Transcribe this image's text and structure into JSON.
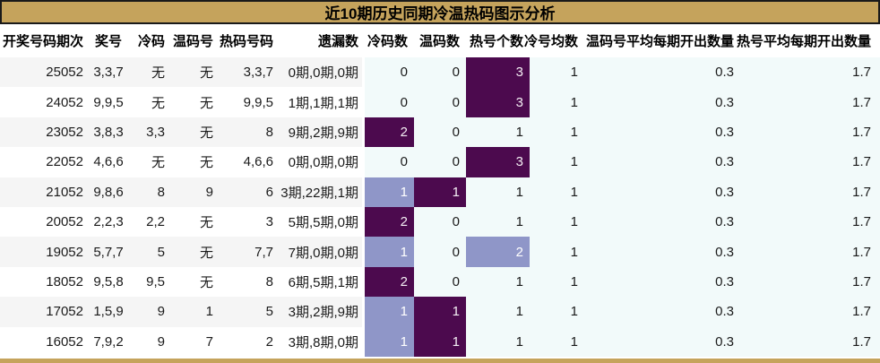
{
  "title": "近10期历史同期冷温热码图示分析",
  "colors": {
    "gold": "#C5A35C",
    "border": "#1A1A1A",
    "dark": "#4C0A4E",
    "light": "#8F96C8",
    "azure": "#F2FAFA",
    "rowAlt": "#F5F5F5"
  },
  "chart_data": {
    "type": "table",
    "title": "近10期历史同期冷温热码图示分析",
    "columns": [
      "开奖号码期次",
      "奖号",
      "冷码",
      "温码号",
      "热码号码",
      "遗漏数",
      "冷码数",
      "温码数",
      "热号个数",
      "冷号均数",
      "温码号平均每期开出数量",
      "热号平均每期开出数量"
    ],
    "highlight_legend": {
      "dark": "deep-purple cell (#4C0A4E)",
      "light": "periwinkle cell (#8F96C8)"
    },
    "rows": [
      {
        "period": "25052",
        "prize": "3,3,7",
        "cold": "无",
        "warm": "无",
        "hot": "3,3,7",
        "omission": "0期,0期,0期",
        "cold_count": "0",
        "warm_count": "0",
        "hot_count": "3",
        "cold_avg": "1",
        "warm_avg_per": "0.3",
        "hot_avg_per": "1.7",
        "highlights": {
          "hot_count": "dark"
        }
      },
      {
        "period": "24052",
        "prize": "9,9,5",
        "cold": "无",
        "warm": "无",
        "hot": "9,9,5",
        "omission": "1期,1期,1期",
        "cold_count": "0",
        "warm_count": "0",
        "hot_count": "3",
        "cold_avg": "1",
        "warm_avg_per": "0.3",
        "hot_avg_per": "1.7",
        "highlights": {
          "hot_count": "dark"
        }
      },
      {
        "period": "23052",
        "prize": "3,8,3",
        "cold": "3,3",
        "warm": "无",
        "hot": "8",
        "omission": "9期,2期,9期",
        "cold_count": "2",
        "warm_count": "0",
        "hot_count": "1",
        "cold_avg": "1",
        "warm_avg_per": "0.3",
        "hot_avg_per": "1.7",
        "highlights": {
          "cold_count": "dark"
        }
      },
      {
        "period": "22052",
        "prize": "4,6,6",
        "cold": "无",
        "warm": "无",
        "hot": "4,6,6",
        "omission": "0期,0期,0期",
        "cold_count": "0",
        "warm_count": "0",
        "hot_count": "3",
        "cold_avg": "1",
        "warm_avg_per": "0.3",
        "hot_avg_per": "1.7",
        "highlights": {
          "hot_count": "dark"
        }
      },
      {
        "period": "21052",
        "prize": "9,8,6",
        "cold": "8",
        "warm": "9",
        "hot": "6",
        "omission": "3期,22期,1期",
        "cold_count": "1",
        "warm_count": "1",
        "hot_count": "1",
        "cold_avg": "1",
        "warm_avg_per": "0.3",
        "hot_avg_per": "1.7",
        "highlights": {
          "cold_count": "light",
          "warm_count": "dark"
        }
      },
      {
        "period": "20052",
        "prize": "2,2,3",
        "cold": "2,2",
        "warm": "无",
        "hot": "3",
        "omission": "5期,5期,0期",
        "cold_count": "2",
        "warm_count": "0",
        "hot_count": "1",
        "cold_avg": "1",
        "warm_avg_per": "0.3",
        "hot_avg_per": "1.7",
        "highlights": {
          "cold_count": "dark"
        }
      },
      {
        "period": "19052",
        "prize": "5,7,7",
        "cold": "5",
        "warm": "无",
        "hot": "7,7",
        "omission": "7期,0期,0期",
        "cold_count": "1",
        "warm_count": "0",
        "hot_count": "2",
        "cold_avg": "1",
        "warm_avg_per": "0.3",
        "hot_avg_per": "1.7",
        "highlights": {
          "cold_count": "light",
          "hot_count": "light"
        }
      },
      {
        "period": "18052",
        "prize": "9,5,8",
        "cold": "9,5",
        "warm": "无",
        "hot": "8",
        "omission": "6期,5期,1期",
        "cold_count": "2",
        "warm_count": "0",
        "hot_count": "1",
        "cold_avg": "1",
        "warm_avg_per": "0.3",
        "hot_avg_per": "1.7",
        "highlights": {
          "cold_count": "dark"
        }
      },
      {
        "period": "17052",
        "prize": "1,5,9",
        "cold": "9",
        "warm": "1",
        "hot": "5",
        "omission": "3期,2期,9期",
        "cold_count": "1",
        "warm_count": "1",
        "hot_count": "1",
        "cold_avg": "1",
        "warm_avg_per": "0.3",
        "hot_avg_per": "1.7",
        "highlights": {
          "cold_count": "light",
          "warm_count": "dark"
        }
      },
      {
        "period": "16052",
        "prize": "7,9,2",
        "cold": "9",
        "warm": "7",
        "hot": "2",
        "omission": "3期,8期,0期",
        "cold_count": "1",
        "warm_count": "1",
        "hot_count": "1",
        "cold_avg": "1",
        "warm_avg_per": "0.3",
        "hot_avg_per": "1.7",
        "highlights": {
          "cold_count": "light",
          "warm_count": "dark"
        }
      }
    ]
  }
}
